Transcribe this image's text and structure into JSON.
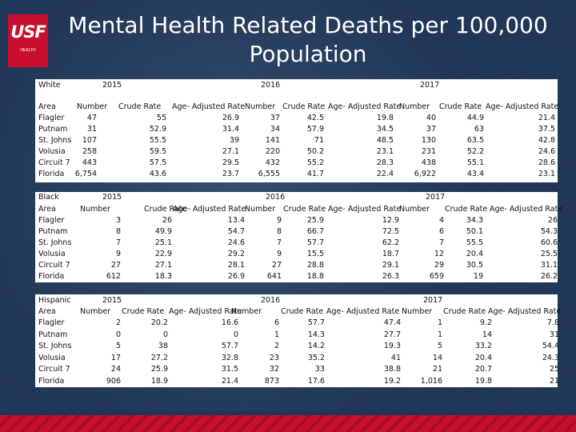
{
  "title": "Mental Health Related Deaths per 100,000 Population",
  "logo": {
    "mark": "USF",
    "sub": "HEALTH"
  },
  "colors": {
    "background": "#1f3556",
    "accent": "#c8102e",
    "panel": "#ffffff"
  },
  "tables": [
    {
      "group": "White",
      "years": [
        "2015",
        "2016",
        "2017"
      ],
      "area_label": "Area",
      "headers": [
        "Number",
        "Crude Rate",
        "Age- Adjusted Rate",
        "Number",
        "Crude Rate",
        "Age- Adjusted Rate",
        "Number",
        "Crude Rate",
        "Age- Adjusted Rate"
      ],
      "rows": [
        [
          "Flagler",
          "47",
          "55",
          "26.9",
          "37",
          "42.5",
          "19.8",
          "40",
          "44.9",
          "21.4"
        ],
        [
          "Putnam",
          "31",
          "52.9",
          "31.4",
          "34",
          "57.9",
          "34.5",
          "37",
          "63",
          "37.5"
        ],
        [
          "St. Johns",
          "107",
          "55.5",
          "39",
          "141",
          "71",
          "48.5",
          "130",
          "63.5",
          "42.8"
        ],
        [
          "Volusia",
          "258",
          "59.5",
          "27.1",
          "220",
          "50.2",
          "23.1",
          "231",
          "52.2",
          "24.6"
        ],
        [
          "Circuit 7",
          "443",
          "57.5",
          "29.5",
          "432",
          "55.2",
          "28.3",
          "438",
          "55.1",
          "28.6"
        ],
        [
          "Florida",
          "6,754",
          "43.6",
          "23.7",
          "6,555",
          "41.7",
          "22.4",
          "6,922",
          "43.4",
          "23.1"
        ]
      ]
    },
    {
      "group": "Black",
      "years": [
        "2015",
        "2016",
        "2017"
      ],
      "area_label": "Area",
      "headers": [
        "Number",
        "Crude Rate",
        "Age- Adjusted Rate",
        "Number",
        "Crude Rate",
        "Age- Adjusted Rate",
        "Number",
        "Crude Rate",
        "Age- Adjusted Rate"
      ],
      "rows": [
        [
          "Flagler",
          "3",
          "26",
          "13.4",
          "9",
          "25.9",
          "12.9",
          "4",
          "34.3",
          "26"
        ],
        [
          "Putnam",
          "8",
          "49.9",
          "54.7",
          "8",
          "66.7",
          "72.5",
          "6",
          "50.1",
          "54.3"
        ],
        [
          "St. Johns",
          "7",
          "25.1",
          "24.6",
          "7",
          "57.7",
          "62.2",
          "7",
          "55.5",
          "60.6"
        ],
        [
          "Volusia",
          "9",
          "22.9",
          "29.2",
          "9",
          "15.5",
          "18.7",
          "12",
          "20.4",
          "25.5"
        ],
        [
          "Circuit 7",
          "27",
          "27.1",
          "28.1",
          "27",
          "28.8",
          "29.1",
          "29",
          "30.5",
          "31.1"
        ],
        [
          "Florida",
          "612",
          "18.3",
          "26.9",
          "641",
          "18.8",
          "26.3",
          "659",
          "19",
          "26.2"
        ]
      ]
    },
    {
      "group": "Hispanic",
      "years": [
        "2015",
        "2016",
        "2017"
      ],
      "area_label": "Area",
      "headers": [
        "Number",
        "Crude Rate",
        "Age- Adjusted Rate",
        "Number",
        "Crude Rate",
        "Age- Adjusted Rate",
        "Number",
        "Crude Rate",
        "Age- Adjusted Rate"
      ],
      "rows": [
        [
          "Flagler",
          "2",
          "20.2",
          "16.6",
          "6",
          "57.7",
          "47.4",
          "1",
          "9.2",
          "7.8"
        ],
        [
          "Putnam",
          "0",
          "0",
          "0",
          "1",
          "14.3",
          "27.7",
          "1",
          "14",
          "31"
        ],
        [
          "St. Johns",
          "5",
          "38",
          "57.7",
          "2",
          "14.2",
          "19.3",
          "5",
          "33.2",
          "54.4"
        ],
        [
          "Volusia",
          "17",
          "27.2",
          "32.8",
          "23",
          "35.2",
          "41",
          "14",
          "20.4",
          "24.3"
        ],
        [
          "Circuit 7",
          "24",
          "25.9",
          "31.5",
          "32",
          "33",
          "38.8",
          "21",
          "20.7",
          "25"
        ],
        [
          "Florida",
          "906",
          "18.9",
          "21.4",
          "873",
          "17.6",
          "19.2",
          "1,016",
          "19.8",
          "21"
        ]
      ]
    }
  ]
}
